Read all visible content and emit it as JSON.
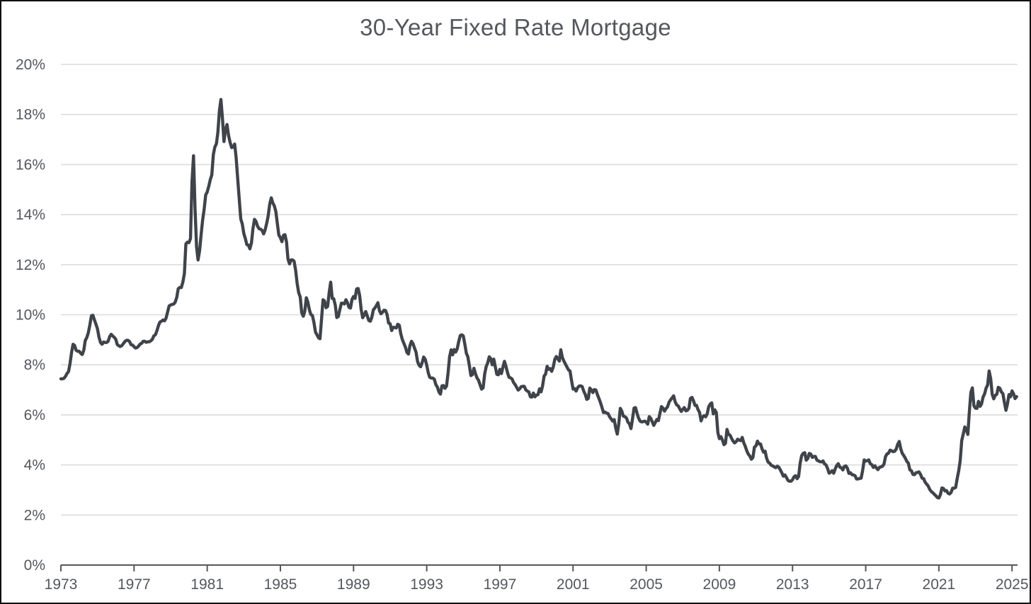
{
  "chart": {
    "title": "30-Year Fixed Rate Mortgage"
  },
  "chart_data": {
    "type": "line",
    "title": "30-Year Fixed Rate Mortgage",
    "series": [
      {
        "name": "30-Year Fixed Rate Mortgage (%)",
        "x_start_year": 1973,
        "x_interval": "monthly",
        "values": [
          7.44,
          7.44,
          7.46,
          7.54,
          7.65,
          7.73,
          8.05,
          8.5,
          8.82,
          8.77,
          8.58,
          8.54,
          8.54,
          8.46,
          8.41,
          8.58,
          8.97,
          9.09,
          9.28,
          9.59,
          9.96,
          9.98,
          9.79,
          9.62,
          9.43,
          9.1,
          8.89,
          8.82,
          8.91,
          8.89,
          8.89,
          8.94,
          9.13,
          9.22,
          9.15,
          9.1,
          9.02,
          8.81,
          8.76,
          8.73,
          8.77,
          8.85,
          8.93,
          8.98,
          8.98,
          8.93,
          8.81,
          8.79,
          8.72,
          8.67,
          8.69,
          8.75,
          8.83,
          8.86,
          8.94,
          8.94,
          8.9,
          8.92,
          8.92,
          8.96,
          9.02,
          9.16,
          9.2,
          9.36,
          9.57,
          9.71,
          9.74,
          9.79,
          9.76,
          9.86,
          10.11,
          10.35,
          10.39,
          10.41,
          10.43,
          10.5,
          10.69,
          11.04,
          11.09,
          11.09,
          11.3,
          11.64,
          12.83,
          12.9,
          12.88,
          13.04,
          15.28,
          16.35,
          14.26,
          12.71,
          12.19,
          12.56,
          13.2,
          13.79,
          14.21,
          14.79,
          14.9,
          15.13,
          15.4,
          15.58,
          16.4,
          16.7,
          16.83,
          17.29,
          18.16,
          18.6,
          17.83,
          16.92,
          17.4,
          17.6,
          17.16,
          16.89,
          16.68,
          16.7,
          16.82,
          16.27,
          15.43,
          14.61,
          13.83,
          13.62,
          13.25,
          13.04,
          12.8,
          12.78,
          12.63,
          12.87,
          13.43,
          13.81,
          13.73,
          13.54,
          13.44,
          13.42,
          13.37,
          13.23,
          13.39,
          13.65,
          13.94,
          14.42,
          14.67,
          14.47,
          14.35,
          14.13,
          13.64,
          13.18,
          13.08,
          12.92,
          13.17,
          13.2,
          12.91,
          12.22,
          12.03,
          12.19,
          12.19,
          12.14,
          11.78,
          11.26,
          10.88,
          10.71,
          10.08,
          9.94,
          10.14,
          10.68,
          10.51,
          10.2,
          10.01,
          9.97,
          9.7,
          9.31,
          9.2,
          9.08,
          9.04,
          9.83,
          10.6,
          10.54,
          10.28,
          10.33,
          10.89,
          11.3,
          10.65,
          10.64,
          10.38,
          9.89,
          9.93,
          10.2,
          10.46,
          10.46,
          10.43,
          10.6,
          10.48,
          10.3,
          10.27,
          10.61,
          10.73,
          10.65,
          11.03,
          11.05,
          10.77,
          10.2,
          9.88,
          9.99,
          10.13,
          9.95,
          9.77,
          9.74,
          9.9,
          10.2,
          10.27,
          10.37,
          10.48,
          10.16,
          10.04,
          10.1,
          10.18,
          10.17,
          10.01,
          9.67,
          9.64,
          9.37,
          9.5,
          9.49,
          9.47,
          9.62,
          9.58,
          9.24,
          9.01,
          8.86,
          8.71,
          8.5,
          8.43,
          8.76,
          8.94,
          8.85,
          8.67,
          8.51,
          8.13,
          7.98,
          7.92,
          8.09,
          8.31,
          8.22,
          7.99,
          7.68,
          7.5,
          7.47,
          7.47,
          7.42,
          7.21,
          7.11,
          6.92,
          6.83,
          7.16,
          7.17,
          7.06,
          7.15,
          7.68,
          8.32,
          8.6,
          8.4,
          8.61,
          8.51,
          8.64,
          8.93,
          9.17,
          9.2,
          9.15,
          8.83,
          8.46,
          8.32,
          7.96,
          7.57,
          7.61,
          7.86,
          7.64,
          7.48,
          7.38,
          7.2,
          7.03,
          7.08,
          7.62,
          7.93,
          8.07,
          8.32,
          8.25,
          8.0,
          8.23,
          7.92,
          7.62,
          7.6,
          7.82,
          7.65,
          7.9,
          8.14,
          7.94,
          7.69,
          7.5,
          7.48,
          7.43,
          7.29,
          7.21,
          7.1,
          6.99,
          7.04,
          7.13,
          7.14,
          7.14,
          7.0,
          6.95,
          6.92,
          6.72,
          6.71,
          6.87,
          6.72,
          6.79,
          6.81,
          7.04,
          6.92,
          7.15,
          7.55,
          7.63,
          7.94,
          7.82,
          7.85,
          7.74,
          7.91,
          8.21,
          8.33,
          8.24,
          8.15,
          8.6,
          8.29,
          8.15,
          8.03,
          7.91,
          7.8,
          7.75,
          7.38,
          7.03,
          7.05,
          6.95,
          7.08,
          7.15,
          7.16,
          7.13,
          6.95,
          6.82,
          6.62,
          6.66,
          7.07,
          7.0,
          6.89,
          7.01,
          6.99,
          6.81,
          6.65,
          6.49,
          6.29,
          6.09,
          6.11,
          6.07,
          6.05,
          5.92,
          5.84,
          5.75,
          5.81,
          5.48,
          5.23,
          5.63,
          6.26,
          6.15,
          5.95,
          5.93,
          5.88,
          5.71,
          5.64,
          5.45,
          5.83,
          6.27,
          6.29,
          6.06,
          5.87,
          5.75,
          5.72,
          5.73,
          5.75,
          5.71,
          5.63,
          5.93,
          5.86,
          5.72,
          5.58,
          5.7,
          5.82,
          5.77,
          6.07,
          6.33,
          6.27,
          6.15,
          6.25,
          6.32,
          6.51,
          6.6,
          6.68,
          6.76,
          6.52,
          6.4,
          6.36,
          6.24,
          6.14,
          6.22,
          6.29,
          6.16,
          6.18,
          6.26,
          6.66,
          6.7,
          6.57,
          6.38,
          6.38,
          6.21,
          6.1,
          5.76,
          5.92,
          5.97,
          5.92,
          6.04,
          6.32,
          6.43,
          6.48,
          6.04,
          6.2,
          6.09,
          5.29,
          5.05,
          5.13,
          5.0,
          4.81,
          4.86,
          5.42,
          5.22,
          5.19,
          5.06,
          4.95,
          4.88,
          4.93,
          5.03,
          4.99,
          4.97,
          5.1,
          4.89,
          4.74,
          4.56,
          4.43,
          4.35,
          4.23,
          4.3,
          4.71,
          4.76,
          4.95,
          4.84,
          4.84,
          4.64,
          4.51,
          4.55,
          4.27,
          4.11,
          4.07,
          3.99,
          3.96,
          3.92,
          3.89,
          3.95,
          3.91,
          3.8,
          3.68,
          3.55,
          3.6,
          3.5,
          3.38,
          3.35,
          3.35,
          3.41,
          3.53,
          3.57,
          3.45,
          3.54,
          4.07,
          4.37,
          4.46,
          4.49,
          4.19,
          4.26,
          4.46,
          4.43,
          4.3,
          4.34,
          4.34,
          4.19,
          4.16,
          4.13,
          4.12,
          4.16,
          4.04,
          4.0,
          3.86,
          3.67,
          3.71,
          3.77,
          3.67,
          3.84,
          3.98,
          4.05,
          3.91,
          3.89,
          3.8,
          3.94,
          3.96,
          3.87,
          3.66,
          3.69,
          3.61,
          3.6,
          3.57,
          3.44,
          3.44,
          3.46,
          3.47,
          3.77,
          4.2,
          4.15,
          4.17,
          4.2,
          4.05,
          4.01,
          3.9,
          3.97,
          3.88,
          3.81,
          3.9,
          3.92,
          3.95,
          4.03,
          4.33,
          4.44,
          4.47,
          4.59,
          4.57,
          4.53,
          4.55,
          4.63,
          4.83,
          4.94,
          4.64,
          4.46,
          4.37,
          4.27,
          4.14,
          4.07,
          3.8,
          3.77,
          3.62,
          3.61,
          3.69,
          3.7,
          3.72,
          3.62,
          3.47,
          3.45,
          3.31,
          3.23,
          3.16,
          3.02,
          2.94,
          2.89,
          2.83,
          2.77,
          2.7,
          2.68,
          2.81,
          3.08,
          3.06,
          2.96,
          2.98,
          2.87,
          2.84,
          2.9,
          3.07,
          3.07,
          3.1,
          3.45,
          3.76,
          4.17,
          4.98,
          5.23,
          5.52,
          5.41,
          5.22,
          6.11,
          6.9,
          7.08,
          6.36,
          6.27,
          6.26,
          6.54,
          6.34,
          6.43,
          6.71,
          6.84,
          7.07,
          7.2,
          7.75,
          7.44,
          6.82,
          6.64,
          6.78,
          6.82,
          7.1,
          7.06,
          6.92,
          6.85,
          6.5,
          6.18,
          6.43,
          6.81,
          6.72,
          6.96,
          6.84,
          6.65,
          6.73
        ]
      }
    ],
    "xlabel": "",
    "ylabel": "",
    "xlim": [
      1973,
      2025.3
    ],
    "ylim": [
      0,
      20
    ],
    "x_ticks": [
      1973,
      1977,
      1981,
      1985,
      1989,
      1993,
      1997,
      2001,
      2005,
      2009,
      2013,
      2017,
      2021,
      2025
    ],
    "y_ticks": [
      0,
      2,
      4,
      6,
      8,
      10,
      12,
      14,
      16,
      18,
      20
    ],
    "y_tick_labels": [
      "0%",
      "2%",
      "4%",
      "6%",
      "8%",
      "10%",
      "12%",
      "14%",
      "16%",
      "18%",
      "20%"
    ],
    "grid": "horizontal gridlines on, y-axis labels left, bottom axis with down ticks",
    "legend": "none",
    "colors": {
      "line": "#3f434a",
      "gridline": "#dcdcdc",
      "axis": "#54575c",
      "text": "#54575c",
      "background": "#ffffff",
      "frame_border": "#111111"
    }
  }
}
